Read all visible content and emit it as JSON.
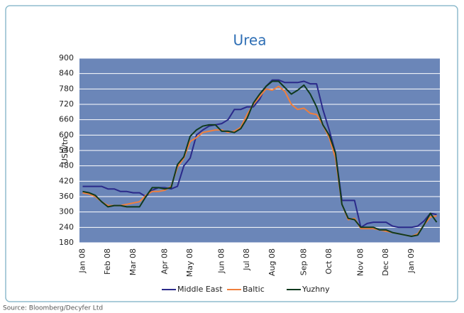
{
  "chart_data": {
    "type": "line",
    "title": "Urea",
    "y_label": "USD/tn",
    "source": "Source: Bloomberg/Decyfer Ltd",
    "categories": [
      "Jan 08",
      null,
      null,
      null,
      "Feb 08",
      null,
      null,
      null,
      "Mar 08",
      null,
      null,
      null,
      null,
      "Apr 08",
      null,
      null,
      null,
      "May 08",
      null,
      null,
      null,
      null,
      "Jun 08",
      null,
      null,
      null,
      "Jul 08",
      null,
      null,
      null,
      "Aug 08",
      null,
      null,
      null,
      null,
      "Sep 08",
      null,
      null,
      null,
      "Oct 08",
      null,
      null,
      null,
      null,
      "Nov 08",
      null,
      null,
      null,
      "Dec 08",
      null,
      null,
      null,
      "Jan 09",
      null,
      null,
      null,
      null
    ],
    "series": [
      {
        "name": "Middle East",
        "color": "#2b2a8a",
        "values": [
          400,
          400,
          400,
          400,
          390,
          390,
          380,
          380,
          375,
          375,
          360,
          385,
          395,
          395,
          390,
          400,
          480,
          510,
          600,
          620,
          635,
          640,
          645,
          660,
          700,
          700,
          710,
          710,
          740,
          790,
          815,
          815,
          805,
          805,
          805,
          810,
          800,
          800,
          700,
          620,
          530,
          345,
          345,
          345,
          240,
          255,
          260,
          260,
          260,
          245,
          240,
          240,
          240,
          245,
          265,
          295,
          290
        ]
      },
      {
        "name": "Baltic",
        "color": "#f07f3c",
        "values": [
          375,
          370,
          360,
          340,
          325,
          325,
          325,
          330,
          335,
          340,
          365,
          380,
          380,
          385,
          400,
          475,
          510,
          575,
          590,
          610,
          615,
          620,
          620,
          610,
          615,
          630,
          680,
          720,
          750,
          780,
          775,
          790,
          770,
          720,
          700,
          705,
          685,
          680,
          640,
          590,
          510,
          330,
          270,
          275,
          235,
          235,
          235,
          230,
          225,
          220,
          215,
          210,
          205,
          215,
          250,
          280,
          285
        ]
      },
      {
        "name": "Yuzhny",
        "color": "#0f3a1e",
        "values": [
          380,
          375,
          365,
          340,
          320,
          325,
          325,
          320,
          320,
          320,
          360,
          395,
          395,
          390,
          395,
          485,
          515,
          595,
          620,
          635,
          640,
          640,
          615,
          615,
          610,
          625,
          665,
          725,
          760,
          790,
          810,
          810,
          785,
          760,
          775,
          795,
          760,
          710,
          640,
          600,
          530,
          330,
          275,
          270,
          240,
          240,
          240,
          230,
          230,
          220,
          215,
          210,
          205,
          210,
          250,
          295,
          260
        ]
      }
    ],
    "ylim": [
      180,
      900
    ],
    "yticks": [
      180,
      240,
      300,
      360,
      420,
      480,
      540,
      600,
      660,
      720,
      780,
      840,
      900
    ],
    "grid": true
  }
}
